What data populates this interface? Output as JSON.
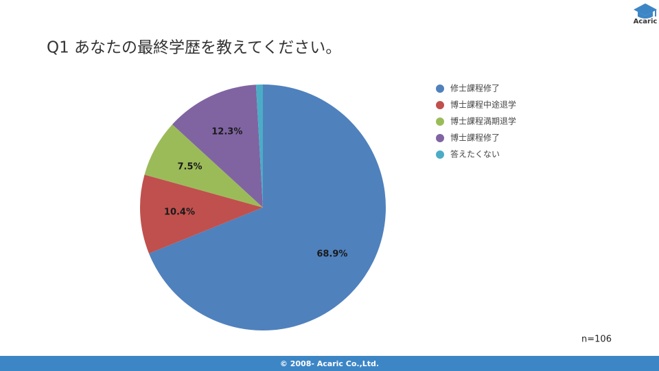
{
  "chart_data": {
    "type": "pie",
    "title": "Q1 あなたの最終学歴を教えてください。",
    "categories": [
      "修士課程修了",
      "博士課程中途退学",
      "博士課程満期退学",
      "博士課程修了",
      "答えたくない"
    ],
    "values": [
      68.9,
      10.4,
      7.5,
      12.3,
      0.9
    ],
    "value_labels": [
      "68.9%",
      "10.4%",
      "7.5%",
      "12.3%",
      null
    ],
    "colors": [
      "#4f81bd",
      "#c0504d",
      "#9bbb59",
      "#8064a2",
      "#4bacc6"
    ],
    "legend": "right",
    "annotation": "n=106"
  },
  "slide": {
    "logo": "Acaric",
    "footer": "© 2008- Acaric Co.,Ltd."
  }
}
